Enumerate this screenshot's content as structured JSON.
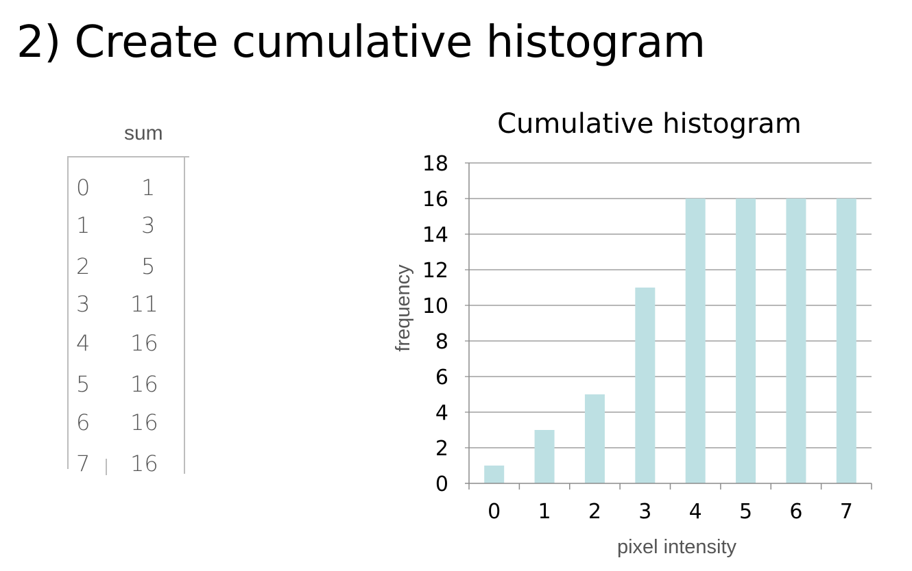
{
  "slide": {
    "title": "2) Create cumulative histogram"
  },
  "table": {
    "header": "sum",
    "rows": [
      {
        "intensity": "0",
        "sum": "1"
      },
      {
        "intensity": "1",
        "sum": "3"
      },
      {
        "intensity": "2",
        "sum": "5"
      },
      {
        "intensity": "3",
        "sum": "11"
      },
      {
        "intensity": "4",
        "sum": "16"
      },
      {
        "intensity": "5",
        "sum": "16"
      },
      {
        "intensity": "6",
        "sum": "16"
      },
      {
        "intensity": "7",
        "sum": "16"
      }
    ]
  },
  "chart_data": {
    "type": "bar",
    "title": "Cumulative histogram",
    "xlabel": "pixel intensity",
    "ylabel": "frequency",
    "categories": [
      "0",
      "1",
      "2",
      "3",
      "4",
      "5",
      "6",
      "7"
    ],
    "values": [
      1,
      3,
      5,
      11,
      16,
      16,
      16,
      16
    ],
    "ylim": [
      0,
      18
    ],
    "yticks": [
      "0",
      "2",
      "4",
      "6",
      "8",
      "10",
      "12",
      "14",
      "16",
      "18"
    ],
    "grid": true,
    "legend": "none",
    "colors": {
      "bar": "#bde0e3",
      "grid": "#8c8c8c",
      "axis": "#8c8c8c"
    }
  }
}
